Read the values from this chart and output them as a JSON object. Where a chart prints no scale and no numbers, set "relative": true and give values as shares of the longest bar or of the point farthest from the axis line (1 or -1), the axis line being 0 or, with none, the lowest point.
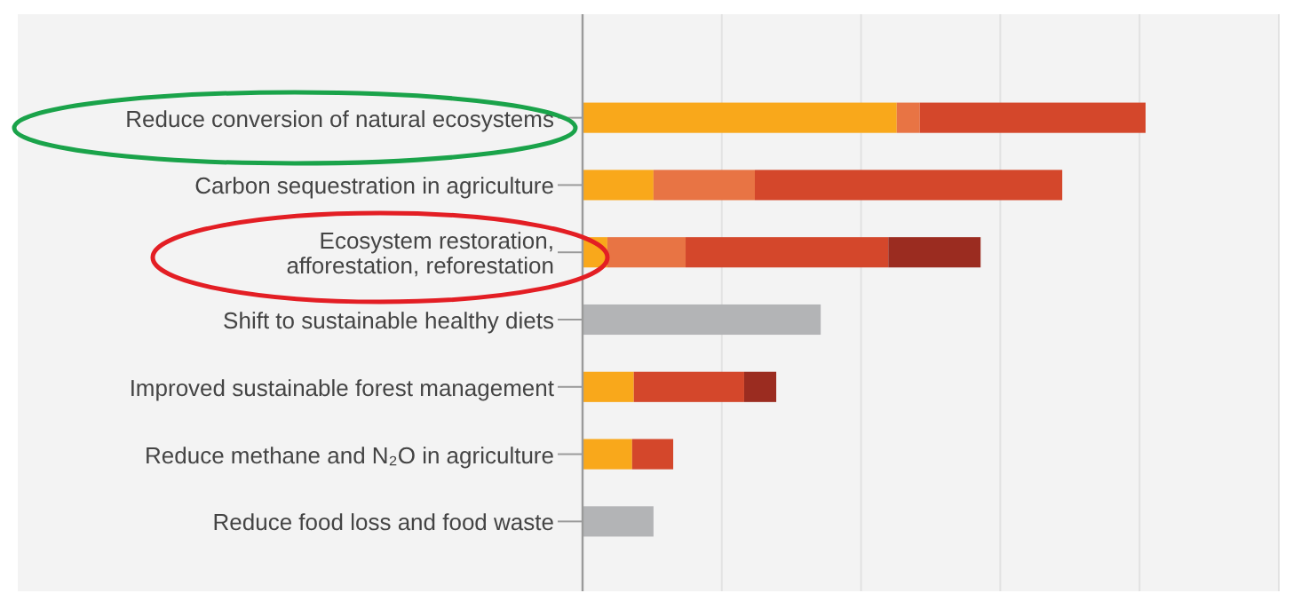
{
  "chart_data": {
    "type": "bar",
    "orientation": "horizontal",
    "stacked": true,
    "relative": true,
    "grid": "x",
    "categories": [
      "Reduce conversion of natural ecosystems",
      "Carbon sequestration in agriculture",
      "Ecosystem restoration,\nafforestation, reforestation",
      "Shift to sustainable healthy diets",
      "Improved sustainable forest management",
      "Reduce methane and N₂O in agriculture",
      "Reduce food loss and food waste"
    ],
    "series": [
      {
        "color": "#f9a81b",
        "values": [
          0.558,
          0.126,
          0.044,
          null,
          0.091,
          0.088,
          null
        ]
      },
      {
        "color": "#e87444",
        "values": [
          0.041,
          0.18,
          0.139,
          null,
          null,
          null,
          null
        ]
      },
      {
        "color": "#d4472b",
        "values": [
          0.401,
          0.546,
          0.36,
          null,
          0.196,
          0.073,
          null
        ]
      },
      {
        "color": "#9b2c20",
        "values": [
          null,
          null,
          0.164,
          null,
          0.057,
          null,
          null
        ]
      },
      {
        "color": "#b3b4b6",
        "values": [
          null,
          null,
          null,
          0.423,
          null,
          null,
          0.126
        ]
      }
    ]
  }
}
